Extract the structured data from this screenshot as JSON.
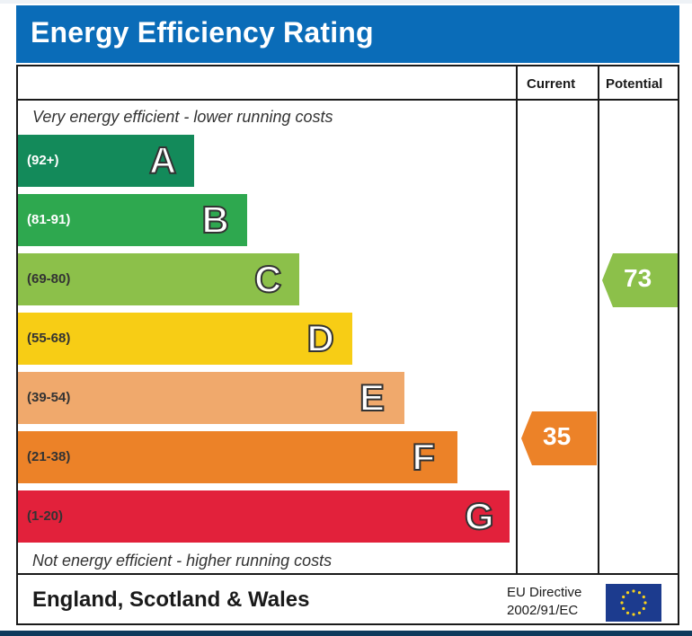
{
  "title": "Energy Efficiency Rating",
  "columns": {
    "current": "Current",
    "potential": "Potential"
  },
  "top_caption": "Very energy efficient - lower running costs",
  "bottom_caption": "Not energy efficient - higher running costs",
  "footer": {
    "region": "England, Scotland & Wales",
    "directive_line1": "EU Directive",
    "directive_line2": "2002/91/EC"
  },
  "chart_data": {
    "type": "bar",
    "title": "Energy Efficiency Rating",
    "bands": [
      {
        "letter": "A",
        "range": "(92+)",
        "min": 92,
        "max": 100,
        "color": "#138a5a",
        "range_color": "#ffffff"
      },
      {
        "letter": "B",
        "range": "(81-91)",
        "min": 81,
        "max": 91,
        "color": "#2ea84f",
        "range_color": "#ffffff"
      },
      {
        "letter": "C",
        "range": "(69-80)",
        "min": 69,
        "max": 80,
        "color": "#8cc04a",
        "range_color": "#333333"
      },
      {
        "letter": "D",
        "range": "(55-68)",
        "min": 55,
        "max": 68,
        "color": "#f7cd15",
        "range_color": "#333333"
      },
      {
        "letter": "E",
        "range": "(39-54)",
        "min": 39,
        "max": 54,
        "color": "#f0a96c",
        "range_color": "#333333"
      },
      {
        "letter": "F",
        "range": "(21-38)",
        "min": 21,
        "max": 38,
        "color": "#ec8228",
        "range_color": "#333333"
      },
      {
        "letter": "G",
        "range": "(1-20)",
        "min": 1,
        "max": 20,
        "color": "#e2213b",
        "range_color": "#333333"
      }
    ],
    "current": {
      "value": 35,
      "band": "F",
      "color": "#ec8228"
    },
    "potential": {
      "value": 73,
      "band": "C",
      "color": "#8cc04a"
    }
  }
}
